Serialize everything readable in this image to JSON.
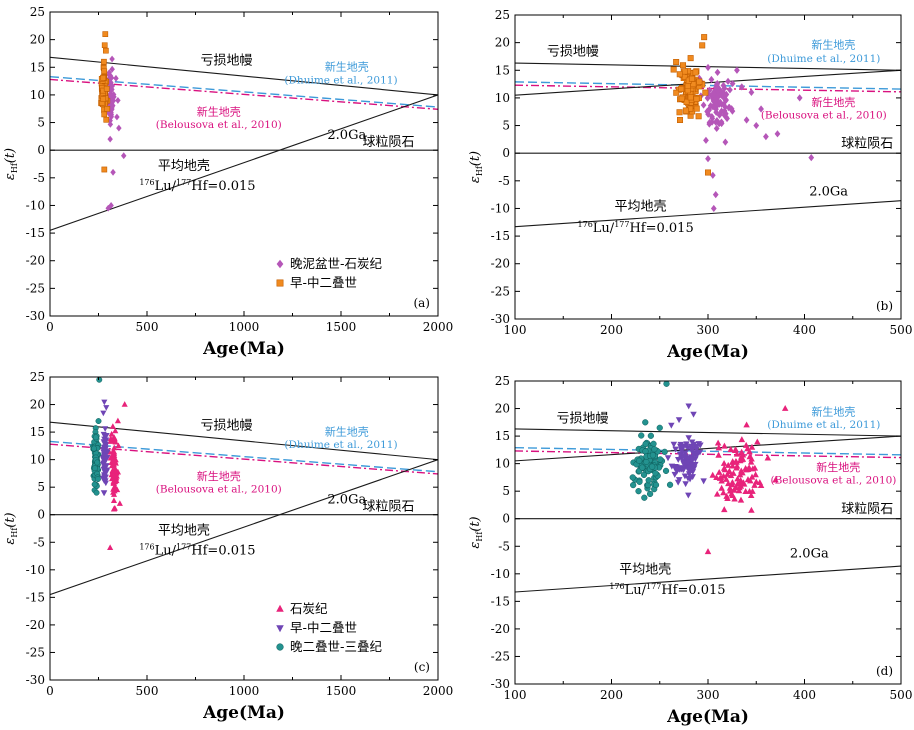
{
  "colors": {
    "axis": "#000000",
    "ref_line": "#1a1a1a",
    "dhuime": "#3d9ad9",
    "belousova": "#d9117f",
    "carb": "#b556b8",
    "early_perm": "#f08a1f",
    "carb_tri": "#e8237a",
    "early_perm_tri": "#6f45b5",
    "late_perm": "#23928f"
  },
  "chart_data": [
    {
      "id": "a",
      "type": "scatter",
      "panel_label": "(a)",
      "xlabel": "Age(Ma)",
      "ylabel": "ε",
      "ylabel_sub": "Hf",
      "ylabel_arg": "(t)",
      "xlim": [
        0,
        2000
      ],
      "ylim": [
        -30,
        25
      ],
      "xticks": [
        0,
        500,
        1000,
        1500,
        2000
      ],
      "yticks": [
        -30,
        -25,
        -20,
        -15,
        -10,
        -5,
        0,
        5,
        10,
        15,
        20,
        25
      ],
      "grid": false,
      "legend_position": "bottom-left",
      "reference_lines": [
        {
          "name": "depleted_mantle",
          "kind": "solid",
          "x": [
            0,
            2000
          ],
          "y": [
            16.8,
            10.0
          ]
        },
        {
          "name": "dhuime",
          "kind": "dashed",
          "x": [
            0,
            2000
          ],
          "y": [
            13.3,
            7.8
          ]
        },
        {
          "name": "belousova",
          "kind": "dashdot",
          "x": [
            0,
            2000
          ],
          "y": [
            12.8,
            7.4
          ]
        },
        {
          "name": "chur",
          "kind": "solid",
          "x": [
            0,
            2000
          ],
          "y": [
            0,
            0
          ]
        },
        {
          "name": "avg_crust",
          "kind": "solid",
          "x": [
            0,
            2000
          ],
          "y": [
            -14.5,
            10.0
          ]
        }
      ],
      "annotations": [
        {
          "text": "亏损地幔",
          "x": 910,
          "y": 15.5
        },
        {
          "text": "新生地壳",
          "x": 1530,
          "y": 14.4
        },
        {
          "text": "(Dhuime et al., 2011)",
          "x": 1500,
          "y": 12.1
        },
        {
          "text": "新生地壳",
          "x": 870,
          "y": 6.3
        },
        {
          "text": "(Belousova et al., 2010)",
          "x": 870,
          "y": 4.0
        },
        {
          "text": "2.0Ga",
          "x": 1530,
          "y": 2.0
        },
        {
          "text": "球粒陨石",
          "x": 1745,
          "y": 0.8
        },
        {
          "text": "平均地壳",
          "x": 690,
          "y": -3.6
        },
        {
          "text": "176Lu/177Hf=0.015",
          "x": 760,
          "y": -7.2,
          "rich": true
        }
      ],
      "series": [
        {
          "name": "晚泥盆世-石炭纪",
          "marker": "diamond",
          "color": "#b556b8",
          "cluster": {
            "x": [
              290,
              335
            ],
            "y": [
              1.5,
              17
            ]
          },
          "points": [
            [
              340,
              13
            ],
            [
              350,
              9
            ],
            [
              355,
              4
            ],
            [
              380,
              -1
            ],
            [
              325,
              -4
            ],
            [
              315,
              -10
            ],
            [
              300,
              -10.5
            ],
            [
              320,
              16.5
            ],
            [
              310,
              2
            ],
            [
              345,
              6
            ]
          ]
        },
        {
          "name": "早-中二叠世",
          "marker": "square",
          "color": "#f08a1f",
          "cluster": {
            "x": [
              255,
              300
            ],
            "y": [
              4.5,
              17.5
            ]
          },
          "points": [
            [
              285,
              21
            ],
            [
              282,
              19
            ],
            [
              288,
              18
            ],
            [
              280,
              -3.5
            ],
            [
              290,
              5.5
            ],
            [
              278,
              16
            ]
          ]
        }
      ]
    },
    {
      "id": "b",
      "type": "scatter",
      "panel_label": "(b)",
      "xlabel": "Age(Ma)",
      "ylabel": "ε",
      "ylabel_sub": "Hf",
      "ylabel_arg": "(t)",
      "xlim": [
        100,
        500
      ],
      "ylim": [
        -30,
        25
      ],
      "xticks": [
        100,
        200,
        300,
        400,
        500
      ],
      "yticks": [
        -30,
        -25,
        -20,
        -15,
        -10,
        -5,
        0,
        5,
        10,
        15,
        20,
        25
      ],
      "grid": false,
      "legend_position": "none",
      "reference_lines": [
        {
          "name": "depleted_mantle",
          "kind": "solid",
          "x": [
            100,
            500
          ],
          "y": [
            16.3,
            15.0
          ]
        },
        {
          "name": "dhuime",
          "kind": "dashed",
          "x": [
            100,
            500
          ],
          "y": [
            12.9,
            11.6
          ]
        },
        {
          "name": "belousova",
          "kind": "dashdot",
          "x": [
            100,
            500
          ],
          "y": [
            12.3,
            11.1
          ]
        },
        {
          "name": "chur",
          "kind": "solid",
          "x": [
            100,
            500
          ],
          "y": [
            0,
            0
          ]
        },
        {
          "name": "avg_crust",
          "kind": "solid",
          "x": [
            100,
            500
          ],
          "y": [
            -13.3,
            -8.6
          ]
        },
        {
          "name": "mantle_2ga",
          "kind": "solid",
          "x": [
            100,
            500
          ],
          "y": [
            10.5,
            15.0
          ]
        }
      ],
      "annotations": [
        {
          "text": "亏损地幔",
          "x": 160,
          "y": 17.7
        },
        {
          "text": "新生地壳",
          "x": 430,
          "y": 18.9
        },
        {
          "text": "(Dhuime et al., 2011)",
          "x": 420,
          "y": 16.5
        },
        {
          "text": "新生地壳",
          "x": 430,
          "y": 8.5
        },
        {
          "text": "(Belousova et al., 2010)",
          "x": 420,
          "y": 6.3
        },
        {
          "text": "2.0Ga",
          "x": 425,
          "y": -7.7
        },
        {
          "text": "球粒陨石",
          "x": 465,
          "y": 1.0
        },
        {
          "text": "平均地壳",
          "x": 230,
          "y": -10.4
        },
        {
          "text": "176Lu/177Hf=0.015",
          "x": 225,
          "y": -14.3,
          "rich": true
        }
      ],
      "series": [
        {
          "name": "晚泥盆世-石炭纪",
          "marker": "diamond",
          "color": "#b556b8",
          "cluster": {
            "x": [
              285,
              335
            ],
            "y": [
              1.5,
              17
            ]
          },
          "points": [
            [
              345,
              11
            ],
            [
              350,
              5
            ],
            [
              355,
              8
            ],
            [
              360,
              3
            ],
            [
              372,
              3.5
            ],
            [
              395,
              10
            ],
            [
              407,
              -0.8
            ],
            [
              340,
              6
            ],
            [
              318,
              2
            ],
            [
              305,
              -4
            ],
            [
              306,
              -10
            ],
            [
              308,
              -7.5
            ],
            [
              300,
              -1
            ],
            [
              335,
              12
            ],
            [
              330,
              15
            ]
          ]
        },
        {
          "name": "早-中二叠世",
          "marker": "square",
          "color": "#f08a1f",
          "cluster": {
            "x": [
              263,
              300
            ],
            "y": [
              4.5,
              17.5
            ]
          },
          "points": [
            [
              296,
              21
            ],
            [
              294,
              19.5
            ],
            [
              300,
              -3.5
            ],
            [
              282,
              17.2
            ],
            [
              267,
              16.5
            ],
            [
              271,
              6
            ]
          ]
        }
      ]
    },
    {
      "id": "c",
      "type": "scatter",
      "panel_label": "(c)",
      "xlabel": "Age(Ma)",
      "ylabel": "ε",
      "ylabel_sub": "Hf",
      "ylabel_arg": "(t)",
      "xlim": [
        0,
        2000
      ],
      "ylim": [
        -30,
        25
      ],
      "xticks": [
        0,
        500,
        1000,
        1500,
        2000
      ],
      "yticks": [
        -30,
        -25,
        -20,
        -15,
        -10,
        -5,
        0,
        5,
        10,
        15,
        20,
        25
      ],
      "grid": false,
      "legend_position": "bottom-left",
      "reference_lines": [
        {
          "name": "depleted_mantle",
          "kind": "solid",
          "x": [
            0,
            2000
          ],
          "y": [
            16.8,
            10.0
          ]
        },
        {
          "name": "dhuime",
          "kind": "dashed",
          "x": [
            0,
            2000
          ],
          "y": [
            13.3,
            7.8
          ]
        },
        {
          "name": "belousova",
          "kind": "dashdot",
          "x": [
            0,
            2000
          ],
          "y": [
            12.8,
            7.4
          ]
        },
        {
          "name": "chur",
          "kind": "solid",
          "x": [
            0,
            2000
          ],
          "y": [
            0,
            0
          ]
        },
        {
          "name": "avg_crust",
          "kind": "solid",
          "x": [
            0,
            2000
          ],
          "y": [
            -14.5,
            10.0
          ]
        }
      ],
      "annotations": [
        {
          "text": "亏损地幔",
          "x": 910,
          "y": 15.5
        },
        {
          "text": "新生地壳",
          "x": 1530,
          "y": 14.4
        },
        {
          "text": "(Dhuime et al., 2011)",
          "x": 1500,
          "y": 12.1
        },
        {
          "text": "新生地壳",
          "x": 870,
          "y": 6.3
        },
        {
          "text": "(Belousova et al., 2010)",
          "x": 870,
          "y": 4.0
        },
        {
          "text": "2.0Ga",
          "x": 1530,
          "y": 2.0
        },
        {
          "text": "球粒陨石",
          "x": 1745,
          "y": 0.8
        },
        {
          "text": "平均地壳",
          "x": 690,
          "y": -3.6
        },
        {
          "text": "176Lu/177Hf=0.015",
          "x": 760,
          "y": -7.2,
          "rich": true
        }
      ],
      "series": [
        {
          "name": "石炭纪",
          "marker": "triangle",
          "color": "#e8237a",
          "cluster": {
            "x": [
              300,
              360
            ],
            "y": [
              -1,
              19
            ]
          },
          "points": [
            [
              385,
              20
            ],
            [
              310,
              -6
            ],
            [
              350,
              17
            ],
            [
              330,
              1
            ],
            [
              360,
              2
            ]
          ]
        },
        {
          "name": "早-中二叠世",
          "marker": "triangle-down",
          "color": "#6f45b5",
          "cluster": {
            "x": [
              265,
              300
            ],
            "y": [
              1,
              19
            ]
          },
          "points": [
            [
              280,
              20.5
            ],
            [
              290,
              19.5
            ],
            [
              275,
              18.5
            ]
          ]
        },
        {
          "name": "晚二叠世-三叠纪",
          "marker": "circle",
          "color": "#23928f",
          "cluster": {
            "x": [
              215,
              260
            ],
            "y": [
              3,
              17.5
            ]
          },
          "points": [
            [
              254,
              24.5
            ],
            [
              240,
              4
            ],
            [
              230,
              5.5
            ],
            [
              250,
              17
            ]
          ]
        }
      ]
    },
    {
      "id": "d",
      "type": "scatter",
      "panel_label": "(d)",
      "xlabel": "Age(Ma)",
      "ylabel": "ε",
      "ylabel_sub": "Hf",
      "ylabel_arg": "(t)",
      "xlim": [
        100,
        500
      ],
      "ylim": [
        -30,
        25
      ],
      "xticks": [
        100,
        200,
        300,
        400,
        500
      ],
      "yticks": [
        -30,
        -25,
        -20,
        -15,
        -10,
        -5,
        0,
        5,
        10,
        15,
        20,
        25
      ],
      "grid": false,
      "legend_position": "none",
      "reference_lines": [
        {
          "name": "depleted_mantle",
          "kind": "solid",
          "x": [
            100,
            500
          ],
          "y": [
            16.3,
            15.0
          ]
        },
        {
          "name": "dhuime",
          "kind": "dashed",
          "x": [
            100,
            500
          ],
          "y": [
            12.9,
            11.6
          ]
        },
        {
          "name": "belousova",
          "kind": "dashdot",
          "x": [
            100,
            500
          ],
          "y": [
            12.3,
            11.1
          ]
        },
        {
          "name": "chur",
          "kind": "solid",
          "x": [
            100,
            500
          ],
          "y": [
            0,
            0
          ]
        },
        {
          "name": "avg_crust",
          "kind": "solid",
          "x": [
            100,
            500
          ],
          "y": [
            -13.3,
            -8.6
          ]
        },
        {
          "name": "mantle_2ga",
          "kind": "solid",
          "x": [
            100,
            500
          ],
          "y": [
            10.5,
            15.0
          ]
        }
      ],
      "annotations": [
        {
          "text": "亏损地幔",
          "x": 170,
          "y": 17.5
        },
        {
          "text": "新生地壳",
          "x": 430,
          "y": 18.7
        },
        {
          "text": "(Dhuime et al., 2011)",
          "x": 420,
          "y": 16.5
        },
        {
          "text": "新生地壳",
          "x": 435,
          "y": 8.7
        },
        {
          "text": "(Belousova et al., 2010)",
          "x": 430,
          "y": 6.4
        },
        {
          "text": "2.0Ga",
          "x": 405,
          "y": -7.0
        },
        {
          "text": "球粒陨石",
          "x": 465,
          "y": 1.0
        },
        {
          "text": "平均地壳",
          "x": 235,
          "y": -9.9
        },
        {
          "text": "176Lu/177Hf=0.015",
          "x": 258,
          "y": -13.7,
          "rich": true
        }
      ],
      "series": [
        {
          "name": "石炭纪",
          "marker": "triangle",
          "color": "#e8237a",
          "cluster": {
            "x": [
              298,
              365
            ],
            "y": [
              -1,
              17
            ]
          },
          "points": [
            [
              380,
              20
            ],
            [
              300,
              -6
            ],
            [
              362,
              11
            ],
            [
              355,
              6
            ],
            [
              340,
              17
            ],
            [
              370,
              7
            ],
            [
              345,
              1.5
            ]
          ]
        },
        {
          "name": "早-中二叠世",
          "marker": "triangle-down",
          "color": "#6f45b5",
          "cluster": {
            "x": [
              255,
              300
            ],
            "y": [
              3,
              19
            ]
          },
          "points": [
            [
              280,
              20.5
            ],
            [
              285,
              19
            ],
            [
              270,
              18
            ],
            [
              262,
              17
            ]
          ]
        },
        {
          "name": "晚二叠世-三叠纪",
          "marker": "circle",
          "color": "#23928f",
          "cluster": {
            "x": [
              215,
              265
            ],
            "y": [
              3,
              17
            ]
          },
          "points": [
            [
              257,
              24.5
            ],
            [
              222,
              7.5
            ],
            [
              228,
              5
            ],
            [
              240,
              4.5
            ],
            [
              250,
              16.5
            ],
            [
              235,
              17.5
            ]
          ]
        }
      ]
    }
  ]
}
